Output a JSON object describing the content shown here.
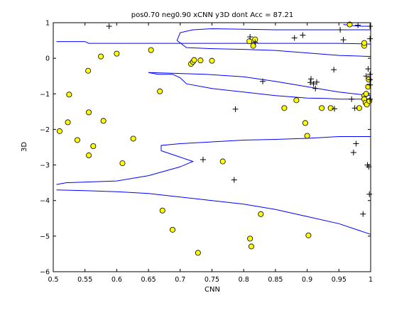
{
  "chart_data": {
    "type": "scatter",
    "title": "pos0.70 neg0.90 xCNN y3D dont Acc = 87.21",
    "xlabel": "CNN",
    "ylabel": "3D",
    "xlim": [
      0.5,
      1.0
    ],
    "ylim": [
      -6,
      1
    ],
    "xticks": [
      0.5,
      0.55,
      0.6,
      0.65,
      0.7,
      0.75,
      0.8,
      0.85,
      0.9,
      0.95,
      1.0
    ],
    "xtick_labels": [
      "0.5",
      "0.55",
      "0.6",
      "0.65",
      "0.7",
      "0.75",
      "0.8",
      "0.85",
      "0.9",
      "0.95",
      "1"
    ],
    "yticks": [
      1,
      0,
      -1,
      -2,
      -3,
      -4,
      -5,
      -6
    ],
    "ytick_labels": [
      "1",
      "0",
      "−1",
      "−2",
      "−3",
      "−4",
      "−5",
      "−6"
    ],
    "grid": false,
    "legend": false,
    "colors": {
      "circle_fill": "#ffff00",
      "circle_edge": "#000000",
      "plus": "#000000",
      "boundary": "#0000ff"
    },
    "series": [
      {
        "marker": "circle",
        "points": [
          [
            0.51,
            -2.05
          ],
          [
            0.523,
            -1.8
          ],
          [
            0.525,
            -1.02
          ],
          [
            0.538,
            -2.3
          ],
          [
            0.555,
            -0.35
          ],
          [
            0.556,
            -1.52
          ],
          [
            0.556,
            -2.73
          ],
          [
            0.563,
            -2.47
          ],
          [
            0.575,
            0.05
          ],
          [
            0.579,
            -1.76
          ],
          [
            0.6,
            0.13
          ],
          [
            0.609,
            -2.95
          ],
          [
            0.626,
            -2.26
          ],
          [
            0.654,
            0.23
          ],
          [
            0.668,
            -0.93
          ],
          [
            0.672,
            -4.28
          ],
          [
            0.688,
            -4.82
          ],
          [
            0.717,
            -0.16
          ],
          [
            0.72,
            -0.1
          ],
          [
            0.722,
            -0.05
          ],
          [
            0.728,
            -5.47
          ],
          [
            0.732,
            -0.06
          ],
          [
            0.75,
            -0.07
          ],
          [
            0.767,
            -2.9
          ],
          [
            0.809,
            0.48
          ],
          [
            0.81,
            -5.07
          ],
          [
            0.812,
            -5.29
          ],
          [
            0.815,
            0.35
          ],
          [
            0.818,
            0.53
          ],
          [
            0.827,
            -4.38
          ],
          [
            0.864,
            -1.4
          ],
          [
            0.883,
            -1.18
          ],
          [
            0.897,
            -1.82
          ],
          [
            0.9,
            -2.18
          ],
          [
            0.902,
            -4.98
          ],
          [
            0.923,
            -1.4
          ],
          [
            0.937,
            -1.4
          ],
          [
            0.967,
            0.95
          ],
          [
            0.982,
            -1.4
          ],
          [
            0.99,
            0.35
          ],
          [
            0.99,
            0.43
          ],
          [
            0.99,
            -1.05
          ],
          [
            0.99,
            -1.15
          ],
          [
            0.992,
            -1.25
          ],
          [
            0.993,
            -1.0
          ],
          [
            0.994,
            -1.3
          ],
          [
            0.996,
            -0.8
          ],
          [
            0.997,
            -0.6
          ],
          [
            0.998,
            -1.2
          ]
        ]
      },
      {
        "marker": "plus",
        "points": [
          [
            0.588,
            0.9
          ],
          [
            0.81,
            0.6
          ],
          [
            0.818,
            0.45
          ],
          [
            0.83,
            -0.65
          ],
          [
            0.88,
            0.57
          ],
          [
            0.893,
            0.65
          ],
          [
            0.905,
            -0.68
          ],
          [
            0.906,
            -0.58
          ],
          [
            0.91,
            -0.72
          ],
          [
            0.913,
            -0.85
          ],
          [
            0.915,
            -0.67
          ],
          [
            0.942,
            -0.32
          ],
          [
            0.952,
            0.8
          ],
          [
            0.957,
            0.52
          ],
          [
            0.97,
            -1.15
          ],
          [
            0.973,
            -2.65
          ],
          [
            0.975,
            -1.4
          ],
          [
            0.977,
            -2.4
          ],
          [
            0.98,
            0.93
          ],
          [
            0.988,
            -4.38
          ],
          [
            0.993,
            -0.5
          ],
          [
            0.995,
            -3.0
          ],
          [
            0.997,
            -3.05
          ],
          [
            0.998,
            -3.82
          ],
          [
            0.999,
            0.9
          ],
          [
            0.999,
            0.55
          ],
          [
            0.999,
            -0.45
          ],
          [
            0.999,
            -0.6
          ],
          [
            0.999,
            -1.15
          ],
          [
            0.999,
            -0.75
          ],
          [
            0.787,
            -1.43
          ],
          [
            0.943,
            -1.42
          ],
          [
            0.736,
            -2.85
          ],
          [
            0.785,
            -3.42
          ],
          [
            0.996,
            -0.3
          ]
        ]
      }
    ],
    "boundary_lines": [
      [
        [
          0.505,
          0.47
        ],
        [
          0.55,
          0.47
        ],
        [
          0.556,
          0.42
        ],
        [
          0.6,
          0.42
        ],
        [
          0.7,
          0.42
        ],
        [
          0.8,
          0.42
        ],
        [
          0.85,
          0.42
        ],
        [
          0.9,
          0.42
        ],
        [
          0.95,
          0.42
        ],
        [
          1.0,
          0.4
        ]
      ],
      [
        [
          0.957,
          0.95
        ],
        [
          0.97,
          0.92
        ],
        [
          0.985,
          0.9
        ],
        [
          1.0,
          0.9
        ]
      ],
      [
        [
          1.0,
          0.8
        ],
        [
          0.85,
          0.8
        ],
        [
          0.75,
          0.83
        ],
        [
          0.72,
          0.8
        ],
        [
          0.7,
          0.72
        ],
        [
          0.695,
          0.5
        ],
        [
          0.71,
          0.3
        ],
        [
          0.75,
          0.27
        ],
        [
          0.8,
          0.25
        ],
        [
          0.85,
          0.22
        ],
        [
          0.9,
          0.15
        ],
        [
          0.95,
          0.08
        ],
        [
          1.0,
          0.05
        ]
      ],
      [
        [
          0.65,
          -0.4
        ],
        [
          0.74,
          -0.45
        ],
        [
          0.8,
          -0.52
        ],
        [
          0.85,
          -0.65
        ],
        [
          0.9,
          -0.8
        ],
        [
          0.95,
          -0.95
        ],
        [
          1.0,
          -1.05
        ]
      ],
      [
        [
          1.0,
          -1.15
        ],
        [
          0.95,
          -1.15
        ],
        [
          0.93,
          -1.13
        ],
        [
          0.9,
          -1.12
        ],
        [
          0.85,
          -1.05
        ],
        [
          0.8,
          -0.95
        ],
        [
          0.75,
          -0.85
        ],
        [
          0.71,
          -0.72
        ],
        [
          0.7,
          -0.55
        ],
        [
          0.688,
          -0.45
        ],
        [
          0.665,
          -0.45
        ],
        [
          0.65,
          -0.4
        ]
      ],
      [
        [
          0.505,
          -3.55
        ],
        [
          0.52,
          -3.5
        ],
        [
          0.6,
          -3.45
        ],
        [
          0.65,
          -3.3
        ],
        [
          0.7,
          -3.05
        ],
        [
          0.72,
          -2.9
        ],
        [
          0.695,
          -2.75
        ],
        [
          0.67,
          -2.6
        ],
        [
          0.67,
          -2.45
        ],
        [
          0.7,
          -2.4
        ],
        [
          0.75,
          -2.35
        ],
        [
          0.8,
          -2.3
        ],
        [
          0.85,
          -2.28
        ],
        [
          0.9,
          -2.25
        ],
        [
          0.95,
          -2.2
        ],
        [
          1.0,
          -2.2
        ]
      ],
      [
        [
          0.505,
          -3.7
        ],
        [
          0.55,
          -3.72
        ],
        [
          0.6,
          -3.75
        ],
        [
          0.65,
          -3.8
        ],
        [
          0.7,
          -3.9
        ],
        [
          0.75,
          -4.0
        ],
        [
          0.8,
          -4.1
        ],
        [
          0.85,
          -4.25
        ],
        [
          0.9,
          -4.45
        ],
        [
          0.95,
          -4.65
        ],
        [
          1.0,
          -4.95
        ]
      ]
    ]
  }
}
